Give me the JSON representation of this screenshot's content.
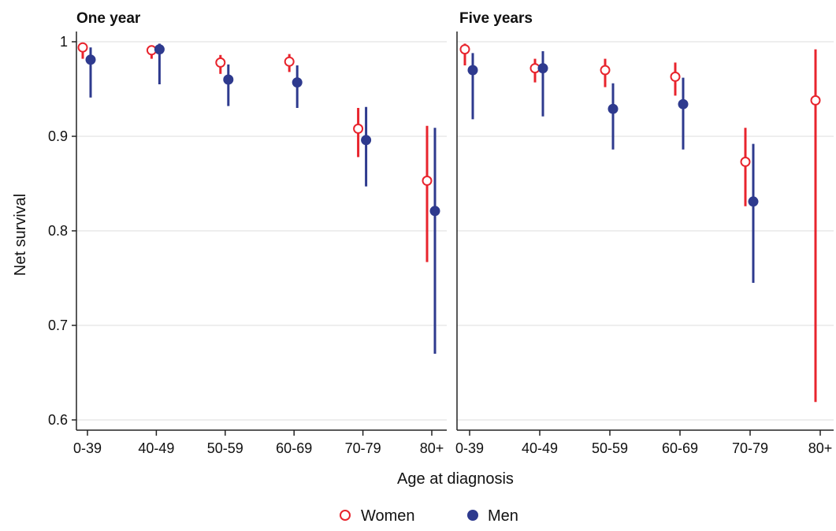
{
  "chart_data": {
    "type": "scatter",
    "panels": [
      {
        "title": "One year",
        "categories": [
          "0-39",
          "40-49",
          "50-59",
          "60-69",
          "70-79",
          "80+"
        ],
        "series": [
          {
            "name": "Women",
            "values": [
              0.994,
              0.991,
              0.978,
              0.979,
              0.908,
              0.853
            ],
            "lower": [
              0.982,
              0.982,
              0.966,
              0.968,
              0.878,
              0.767
            ],
            "upper": [
              0.999,
              0.996,
              0.986,
              0.987,
              0.93,
              0.911
            ]
          },
          {
            "name": "Men",
            "values": [
              0.981,
              0.992,
              0.96,
              0.957,
              0.896,
              0.821
            ],
            "lower": [
              0.941,
              0.955,
              0.932,
              0.93,
              0.847,
              0.67
            ],
            "upper": [
              0.994,
              0.998,
              0.976,
              0.975,
              0.931,
              0.909
            ]
          }
        ]
      },
      {
        "title": "Five years",
        "categories": [
          "0-39",
          "40-49",
          "50-59",
          "60-69",
          "70-79",
          "80+"
        ],
        "series": [
          {
            "name": "Women",
            "values": [
              0.992,
              0.972,
              0.97,
              0.963,
              0.873,
              0.938
            ],
            "lower": [
              0.975,
              0.957,
              0.952,
              0.943,
              0.826,
              0.619
            ],
            "upper": [
              0.998,
              0.982,
              0.982,
              0.978,
              0.909,
              0.992
            ]
          },
          {
            "name": "Men",
            "values": [
              0.97,
              0.972,
              0.929,
              0.934,
              0.831,
              null
            ],
            "lower": [
              0.918,
              0.921,
              0.886,
              0.886,
              0.745,
              null
            ],
            "upper": [
              0.988,
              0.99,
              0.956,
              0.962,
              0.892,
              null
            ]
          }
        ]
      }
    ],
    "xlabel": "Age at diagnosis",
    "ylabel": "Net survival",
    "ylim": [
      0.59,
      1.0
    ],
    "yticks": [
      "0.6",
      "0.7",
      "0.8",
      "0.9",
      "1"
    ],
    "grid": true,
    "legend": {
      "position": "bottom-center",
      "entries": [
        "Women",
        "Men"
      ]
    },
    "colors": {
      "women": "#e8242d",
      "men": "#2e3a8e",
      "grid": "#dcdcdc",
      "axis": "#222222"
    }
  }
}
